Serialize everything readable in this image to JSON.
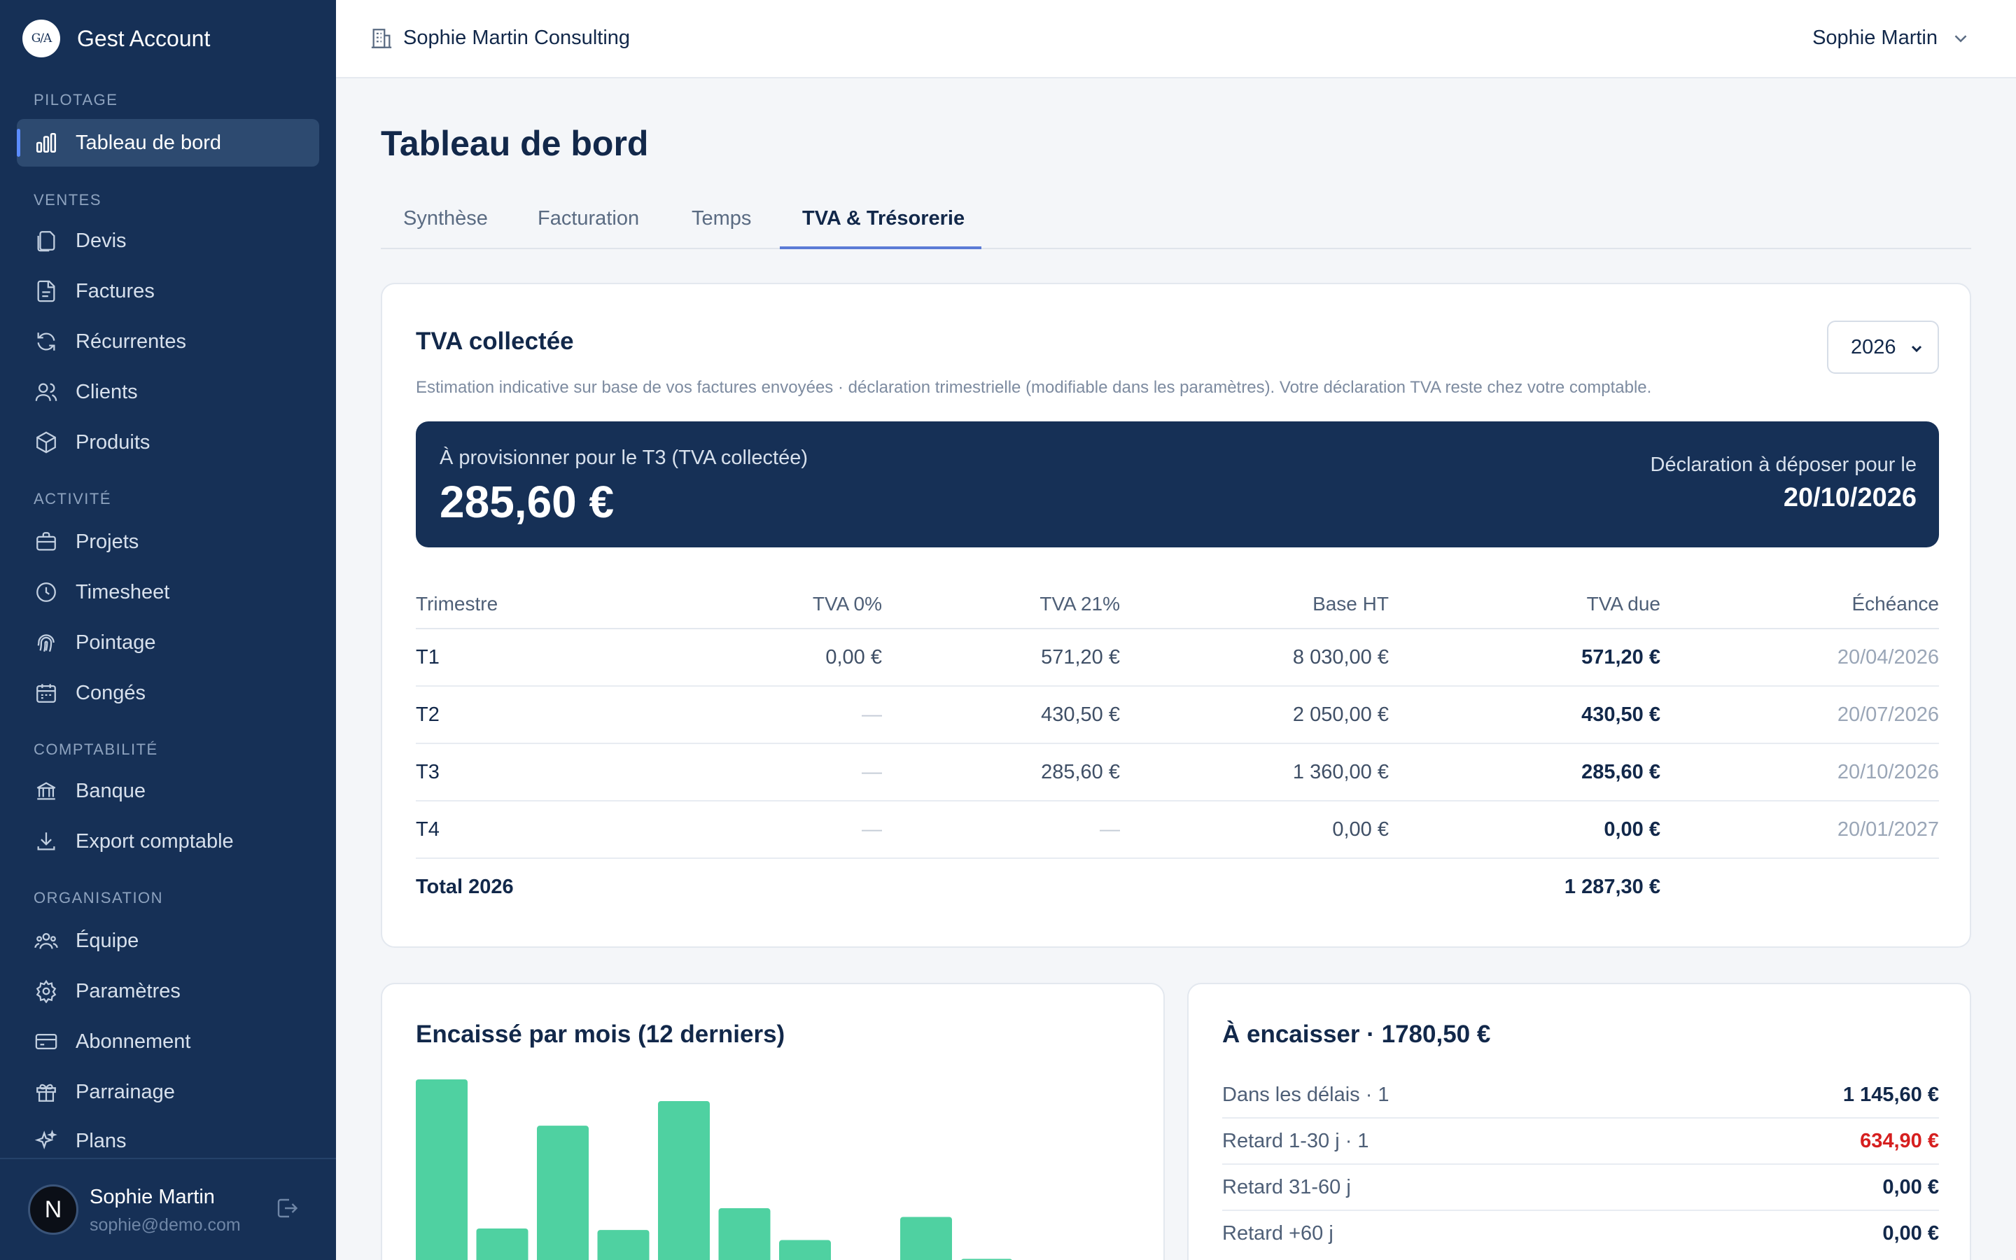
{
  "app": {
    "brand_logo": "G/A",
    "brand_name": "Gest Account"
  },
  "sidebar": {
    "sections": [
      {
        "title": "PILOTAGE"
      },
      {
        "title": "VENTES"
      },
      {
        "title": "ACTIVITÉ"
      },
      {
        "title": "COMPTABILITÉ"
      },
      {
        "title": "ORGANISATION"
      }
    ],
    "items": [
      {
        "label": "Tableau de bord",
        "icon": "bar-chart-icon",
        "active": true
      },
      {
        "label": "Devis",
        "icon": "documents-icon"
      },
      {
        "label": "Factures",
        "icon": "invoice-icon"
      },
      {
        "label": "Récurrentes",
        "icon": "refresh-icon"
      },
      {
        "label": "Clients",
        "icon": "users-icon"
      },
      {
        "label": "Produits",
        "icon": "box-icon"
      },
      {
        "label": "Projets",
        "icon": "briefcase-icon"
      },
      {
        "label": "Timesheet",
        "icon": "clock-icon"
      },
      {
        "label": "Pointage",
        "icon": "fingerprint-icon"
      },
      {
        "label": "Congés",
        "icon": "calendar-icon"
      },
      {
        "label": "Banque",
        "icon": "bank-icon"
      },
      {
        "label": "Export comptable",
        "icon": "download-icon"
      },
      {
        "label": "Équipe",
        "icon": "team-icon"
      },
      {
        "label": "Paramètres",
        "icon": "gear-icon"
      },
      {
        "label": "Abonnement",
        "icon": "credit-card-icon"
      },
      {
        "label": "Parrainage",
        "icon": "gift-icon"
      },
      {
        "label": "Plans",
        "icon": "sparkles-icon"
      }
    ],
    "user": {
      "avatar_letter": "N",
      "name": "Sophie Martin",
      "email": "sophie@demo.com"
    }
  },
  "topbar": {
    "organization": "Sophie Martin Consulting",
    "account_name": "Sophie Martin"
  },
  "page": {
    "title": "Tableau de bord",
    "tabs": [
      {
        "label": "Synthèse"
      },
      {
        "label": "Facturation"
      },
      {
        "label": "Temps"
      },
      {
        "label": "TVA & Trésorerie",
        "active": true
      }
    ]
  },
  "tva": {
    "title": "TVA collectée",
    "year": "2026",
    "note": "Estimation indicative sur base de vos factures envoyées · déclaration trimestrielle (modifiable dans les paramètres). Votre déclaration TVA reste chez votre comptable.",
    "banner": {
      "label": "À provisionner pour le T3 (TVA collectée)",
      "amount": "285,60 €",
      "deadline_label": "Déclaration à déposer pour le",
      "deadline": "20/10/2026"
    },
    "columns": [
      "Trimestre",
      "TVA 0%",
      "TVA 21%",
      "Base HT",
      "TVA due",
      "Échéance"
    ],
    "rows": [
      {
        "quarter": "T1",
        "tva0": "0,00 €",
        "tva21": "571,20 €",
        "base": "8 030,00 €",
        "due": "571,20 €",
        "deadline": "20/04/2026"
      },
      {
        "quarter": "T2",
        "tva0": "—",
        "tva21": "430,50 €",
        "base": "2 050,00 €",
        "due": "430,50 €",
        "deadline": "20/07/2026"
      },
      {
        "quarter": "T3",
        "tva0": "—",
        "tva21": "285,60 €",
        "base": "1 360,00 €",
        "due": "285,60 €",
        "deadline": "20/10/2026"
      },
      {
        "quarter": "T4",
        "tva0": "—",
        "tva21": "—",
        "base": "0,00 €",
        "due": "0,00 €",
        "deadline": "20/01/2027"
      }
    ],
    "total": {
      "label": "Total 2026",
      "due": "1 287,30 €"
    }
  },
  "cashflow": {
    "title": "Encaissé par mois (12 derniers)",
    "bar_color": "#4fd1a1",
    "chart_data": {
      "type": "bar",
      "values": [
        1470,
        440,
        1150,
        430,
        1320,
        580,
        360,
        0,
        520,
        230,
        0,
        20
      ]
    }
  },
  "receivables": {
    "title": "À encaisser · 1780,50 €",
    "rows": [
      {
        "label": "Dans les délais · 1",
        "amount": "1 145,60 €"
      },
      {
        "label": "Retard 1-30 j · 1",
        "amount": "634,90 €",
        "color": "#d61f1f"
      },
      {
        "label": "Retard 31-60 j",
        "amount": "0,00 €"
      },
      {
        "label": "Retard +60 j",
        "amount": "0,00 €"
      }
    ]
  },
  "colors": {
    "sidebar_bg": "#163056",
    "accent": "#5b8cff",
    "bar": "#4fd1a1",
    "danger": "#d61f1f"
  }
}
